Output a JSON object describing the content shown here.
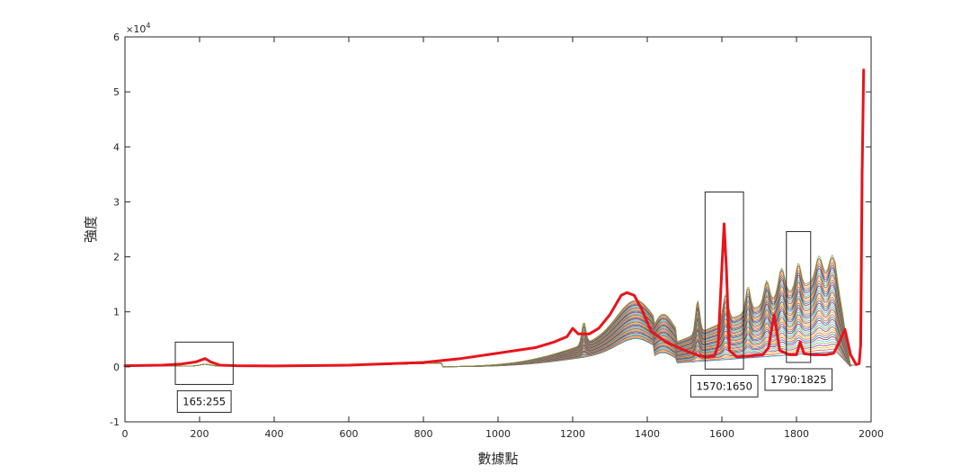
{
  "chart_data": {
    "type": "line",
    "title": "",
    "xlabel": "數據點",
    "ylabel": "強度",
    "y_exponent": "10",
    "y_exponent_power": "4",
    "y_multiplier_prefix": "×",
    "xlim": [
      0,
      2000
    ],
    "ylim": [
      -10000,
      60000
    ],
    "xticks": [
      0,
      200,
      400,
      600,
      800,
      1000,
      1200,
      1400,
      1600,
      1800,
      2000
    ],
    "yticks": [
      -10000,
      0,
      10000,
      20000,
      30000,
      40000,
      50000,
      60000
    ],
    "xtick_labels": [
      "0",
      "200",
      "400",
      "600",
      "800",
      "1000",
      "1200",
      "1400",
      "1600",
      "1800",
      "2000"
    ],
    "ytick_labels": [
      "-1",
      "0",
      "1",
      "2",
      "3",
      "4",
      "5",
      "6"
    ],
    "grid": false,
    "legend": "none",
    "highlight_color": "#e8141b",
    "series_colors": [
      "#0072bd",
      "#d95319",
      "#edb120",
      "#7e2f8e",
      "#77ac30",
      "#4dbeee",
      "#a2142f"
    ],
    "background_series_count": 40,
    "highlighted_series": {
      "x": [
        0,
        100,
        150,
        190,
        215,
        230,
        255,
        300,
        400,
        600,
        800,
        900,
        1000,
        1100,
        1150,
        1185,
        1200,
        1215,
        1245,
        1270,
        1300,
        1330,
        1345,
        1365,
        1385,
        1410,
        1450,
        1500,
        1540,
        1560,
        1580,
        1590,
        1600,
        1606,
        1612,
        1620,
        1640,
        1680,
        1710,
        1725,
        1740,
        1755,
        1780,
        1800,
        1810,
        1820,
        1840,
        1880,
        1900,
        1915,
        1930,
        1945,
        1960,
        1968,
        1972,
        1976,
        1980
      ],
      "y": [
        200,
        300,
        500,
        900,
        1500,
        900,
        300,
        200,
        150,
        300,
        800,
        1500,
        2500,
        3500,
        4500,
        5500,
        7000,
        6000,
        6000,
        7000,
        9500,
        13000,
        13500,
        13000,
        10500,
        6500,
        4500,
        3000,
        2000,
        1800,
        2000,
        4000,
        18000,
        26000,
        18000,
        3000,
        1800,
        2000,
        2200,
        3500,
        9500,
        3000,
        2200,
        2200,
        4500,
        2400,
        2200,
        2200,
        2500,
        4500,
        6800,
        2200,
        400,
        600,
        4000,
        35000,
        54000
      ]
    },
    "annotations": [
      {
        "label": "165:255",
        "x_range": [
          135,
          290
        ],
        "y_range": [
          -3200,
          4500
        ]
      },
      {
        "label": "1570:1650",
        "x_range": [
          1555,
          1658
        ],
        "y_range": [
          -400,
          31800
        ]
      },
      {
        "label": "1790:1825",
        "x_range": [
          1773,
          1838
        ],
        "y_range": [
          800,
          24600
        ]
      }
    ]
  }
}
